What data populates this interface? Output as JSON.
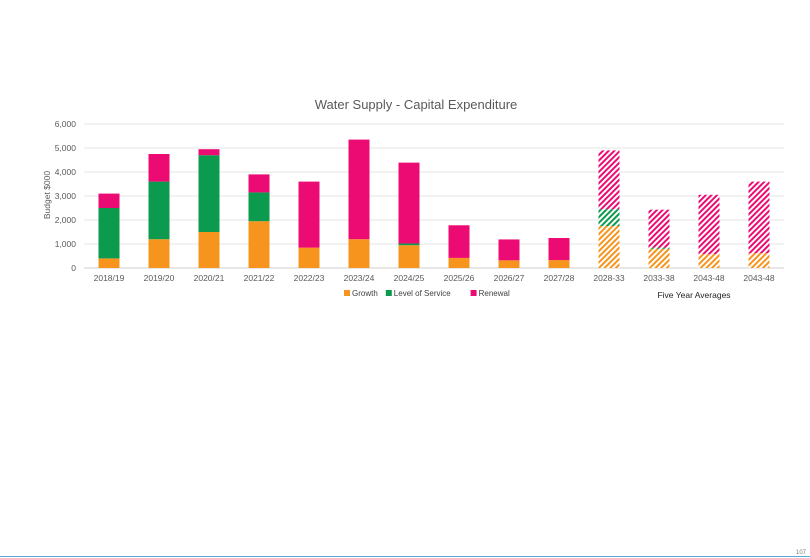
{
  "chart_data": {
    "type": "bar",
    "stacked": true,
    "title": "Water Supply - Capital Expenditure",
    "xlabel": "",
    "ylabel": "Budget $000",
    "ylim": [
      0,
      6000
    ],
    "yticks": [
      0,
      1000,
      2000,
      3000,
      4000,
      5000,
      6000
    ],
    "ytick_labels": [
      "0",
      "1,000",
      "2,000",
      "3,000",
      "4,000",
      "5,000",
      "6,000"
    ],
    "grid": true,
    "legend_position": "bottom",
    "categories": [
      "2018/19",
      "2019/20",
      "2020/21",
      "2021/22",
      "2022/23",
      "2023/24",
      "2024/25",
      "2025/26",
      "2026/27",
      "2027/28",
      "2028-33",
      "2033-38",
      "2043-48",
      "2043-48"
    ],
    "hatched_categories": [
      "2028-33",
      "2033-38",
      "2043-48"
    ],
    "series": [
      {
        "name": "Growth",
        "color": "#f7941d",
        "values": [
          400,
          1200,
          1500,
          1950,
          850,
          1200,
          950,
          420,
          320,
          330,
          1750,
          800,
          580,
          620
        ]
      },
      {
        "name": "Level of Service",
        "color": "#0c9a4e",
        "values": [
          2100,
          2400,
          3200,
          1200,
          0,
          0,
          70,
          0,
          0,
          0,
          700,
          50,
          0,
          0
        ]
      },
      {
        "name": "Renewal",
        "color": "#ec0b73",
        "values": [
          600,
          1150,
          250,
          750,
          2750,
          4150,
          3370,
          1360,
          870,
          920,
          2450,
          1580,
          2470,
          2980
        ]
      }
    ],
    "annotations": [
      "Five Year Averages"
    ]
  },
  "page": {
    "page_number": "107"
  }
}
